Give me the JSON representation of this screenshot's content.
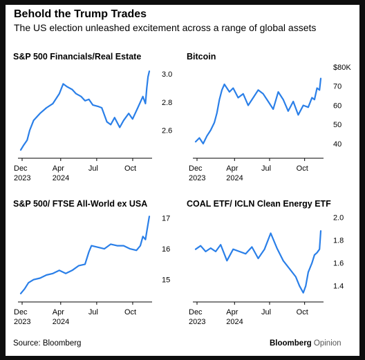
{
  "header": {
    "title": "Behold the Trump Trades",
    "subtitle": "The US election unleashed excitement across a range of global assets"
  },
  "footer": {
    "source": "Source: Bloomberg",
    "brand": "Bloomberg",
    "brand_suffix": "Opinion"
  },
  "colors": {
    "line": "#2a7fe8",
    "axis": "#000000",
    "background": "#ffffff"
  },
  "chart_data": [
    {
      "type": "line",
      "title": "S&P 500 Financials/Real Estate",
      "x_ticks": [
        [
          "Dec",
          "2023"
        ],
        [
          "Apr",
          "2024"
        ],
        [
          "Jul",
          ""
        ],
        [
          "Oct",
          ""
        ]
      ],
      "y_ticks": [
        "2.6",
        "2.8",
        "3.0"
      ],
      "ylim": [
        2.45,
        3.05
      ],
      "x": [
        0,
        2,
        5,
        7,
        10,
        15,
        20,
        25,
        30,
        33,
        36,
        40,
        43,
        47,
        50,
        53,
        56,
        60,
        63,
        67,
        70,
        73,
        77,
        80,
        84,
        87,
        91,
        93,
        95,
        97,
        98,
        99,
        100
      ],
      "series": [
        {
          "values": [
            2.46,
            2.49,
            2.53,
            2.6,
            2.67,
            2.72,
            2.76,
            2.79,
            2.86,
            2.93,
            2.91,
            2.89,
            2.86,
            2.84,
            2.81,
            2.82,
            2.78,
            2.77,
            2.76,
            2.66,
            2.64,
            2.69,
            2.62,
            2.67,
            2.72,
            2.68,
            2.76,
            2.8,
            2.84,
            2.79,
            2.9,
            2.98,
            3.02
          ]
        }
      ]
    },
    {
      "type": "line",
      "title": "Bitcoin",
      "x_ticks": [
        [
          "Dec",
          "2023"
        ],
        [
          "Apr",
          "2024"
        ],
        [
          "Jul",
          ""
        ],
        [
          "Oct",
          ""
        ]
      ],
      "y_ticks": [
        "40",
        "50",
        "60",
        "70",
        "$80K"
      ],
      "ylim": [
        36,
        80
      ],
      "x": [
        0,
        3,
        6,
        9,
        12,
        15,
        17,
        19,
        21,
        23,
        27,
        30,
        34,
        38,
        42,
        46,
        50,
        54,
        58,
        62,
        66,
        70,
        74,
        78,
        82,
        86,
        90,
        93,
        95,
        97,
        99,
        100
      ],
      "series": [
        {
          "values": [
            41,
            43,
            40,
            44,
            47,
            51,
            56,
            63,
            68,
            71,
            67,
            69,
            64,
            66,
            60,
            64,
            68,
            66,
            62,
            58,
            67,
            63,
            57,
            62,
            55,
            60,
            59,
            64,
            63,
            69,
            68,
            74
          ]
        }
      ]
    },
    {
      "type": "line",
      "title": "S&P 500/ FTSE All-World ex USA",
      "x_ticks": [
        [
          "Dec",
          "2023"
        ],
        [
          "Apr",
          "2024"
        ],
        [
          "Jul",
          ""
        ],
        [
          "Oct",
          ""
        ]
      ],
      "y_ticks": [
        "15",
        "16",
        "17"
      ],
      "ylim": [
        14.5,
        17.1
      ],
      "x": [
        0,
        3,
        6,
        10,
        15,
        20,
        25,
        30,
        35,
        40,
        45,
        50,
        53,
        55,
        60,
        65,
        70,
        75,
        80,
        85,
        90,
        93,
        95,
        97,
        99,
        100
      ],
      "series": [
        {
          "values": [
            14.55,
            14.7,
            14.9,
            15.0,
            15.05,
            15.15,
            15.2,
            15.3,
            15.2,
            15.3,
            15.45,
            15.5,
            15.9,
            16.1,
            16.05,
            16.0,
            16.15,
            16.1,
            16.1,
            16.0,
            15.95,
            16.1,
            16.4,
            16.3,
            16.8,
            17.05
          ]
        }
      ]
    },
    {
      "type": "line",
      "title": "COAL ETF/ ICLN Clean Energy ETF",
      "x_ticks": [
        [
          "Dec",
          "2023"
        ],
        [
          "Apr",
          "2024"
        ],
        [
          "Jul",
          ""
        ],
        [
          "Oct",
          ""
        ]
      ],
      "y_ticks": [
        "1.4",
        "1.6",
        "1.8",
        "2.0"
      ],
      "ylim": [
        1.32,
        2.02
      ],
      "x": [
        0,
        4,
        8,
        12,
        16,
        20,
        25,
        30,
        35,
        40,
        45,
        50,
        55,
        60,
        65,
        70,
        75,
        80,
        83,
        86,
        88,
        90,
        93,
        95,
        97,
        99,
        100
      ],
      "series": [
        {
          "values": [
            1.72,
            1.75,
            1.7,
            1.73,
            1.7,
            1.76,
            1.62,
            1.72,
            1.7,
            1.68,
            1.74,
            1.64,
            1.72,
            1.86,
            1.73,
            1.62,
            1.55,
            1.48,
            1.4,
            1.34,
            1.4,
            1.52,
            1.6,
            1.67,
            1.69,
            1.72,
            1.88
          ]
        }
      ]
    }
  ]
}
